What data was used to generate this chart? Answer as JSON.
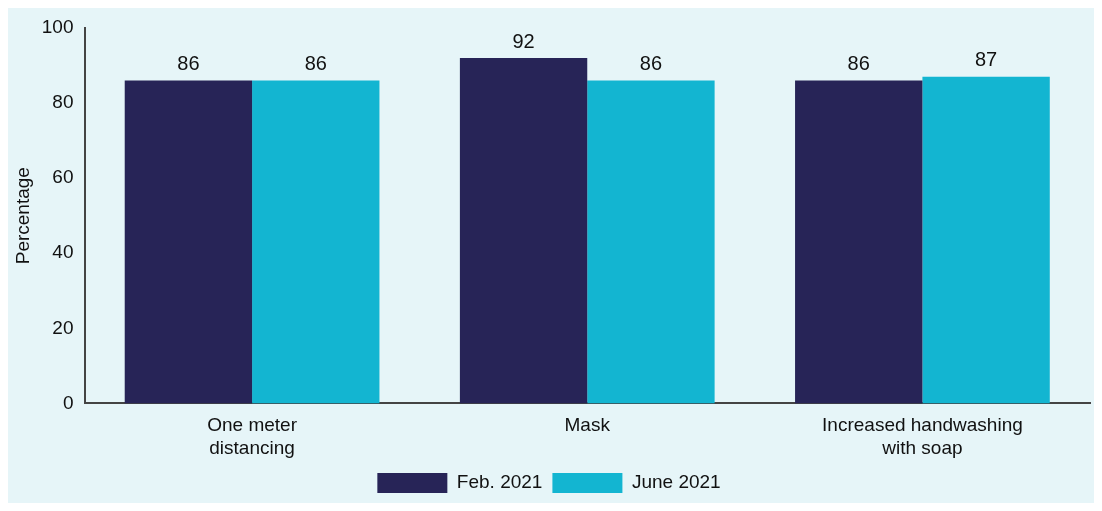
{
  "chart_data": {
    "type": "bar",
    "ylabel": "Percentage",
    "categories": [
      "One meter\ndistancing",
      "Mask",
      "Increased handwashing\nwith soap"
    ],
    "series": [
      {
        "name": "Feb. 2021",
        "color": "#272457",
        "values": [
          86,
          92,
          86
        ]
      },
      {
        "name": "June 2021",
        "color": "#13b5d1",
        "values": [
          86,
          86,
          87
        ]
      }
    ],
    "ylim": [
      0,
      100
    ],
    "yticks": [
      0,
      20,
      40,
      60,
      80,
      100
    ],
    "grid": false,
    "legend": "bottom",
    "data_labels": true
  }
}
